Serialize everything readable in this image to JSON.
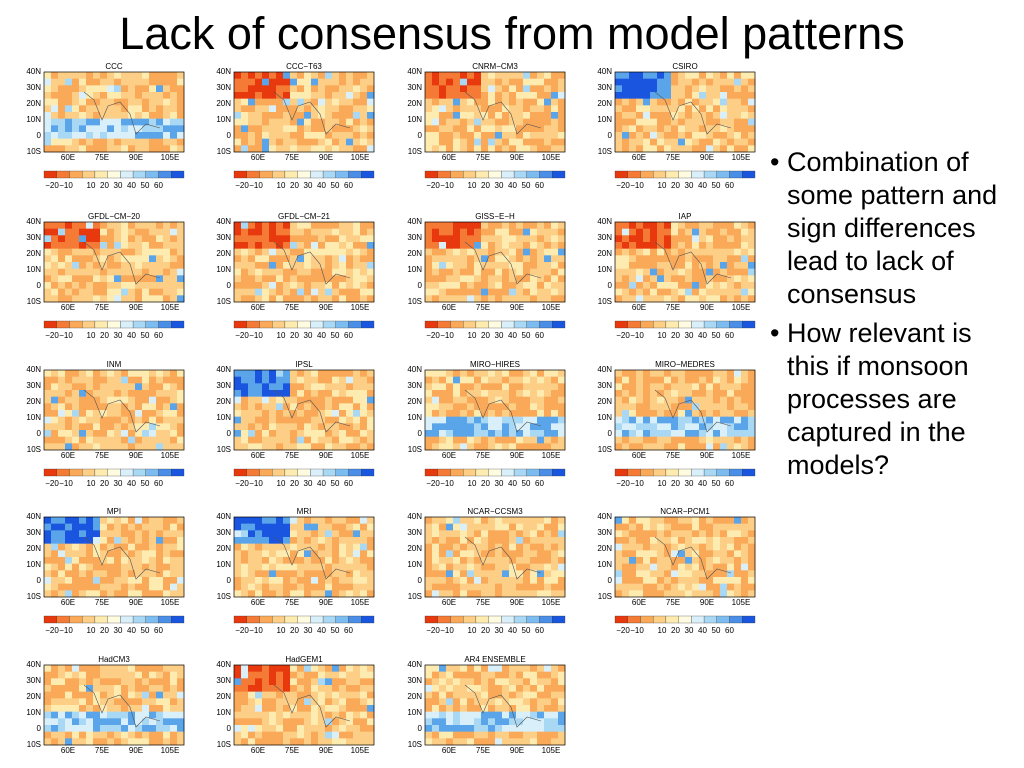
{
  "title": "Lack of consensus from model patterns",
  "panels": [
    {
      "title": "CCC"
    },
    {
      "title": "CCC−T63"
    },
    {
      "title": "CNRM−CM3"
    },
    {
      "title": "CSIRO"
    },
    {
      "title": "GFDL−CM−20"
    },
    {
      "title": "GFDL−CM−21"
    },
    {
      "title": "GISS−E−H"
    },
    {
      "title": "IAP"
    },
    {
      "title": "INM"
    },
    {
      "title": "IPSL"
    },
    {
      "title": "MIRO−HIRES"
    },
    {
      "title": "MIRO−MEDRES"
    },
    {
      "title": "MPI"
    },
    {
      "title": "MRI"
    },
    {
      "title": "NCAR−CCSM3"
    },
    {
      "title": "NCAR−PCM1"
    },
    {
      "title": "HadCM3"
    },
    {
      "title": "HadGEM1"
    },
    {
      "title": "AR4  ENSEMBLE"
    }
  ],
  "lat_labels": [
    "40N",
    "30N",
    "20N",
    "10N",
    "0",
    "10S"
  ],
  "lon_labels": [
    "60E",
    "75E",
    "90E",
    "105E"
  ],
  "colorbar_labels": [
    "−20",
    "−10",
    "10",
    "20",
    "30",
    "40",
    "50",
    "60"
  ],
  "bullets": [
    "Combination of some pattern and sign differences lead to lack of consensus",
    "How relevant is this if monsoon processes are captured in the models?"
  ]
}
